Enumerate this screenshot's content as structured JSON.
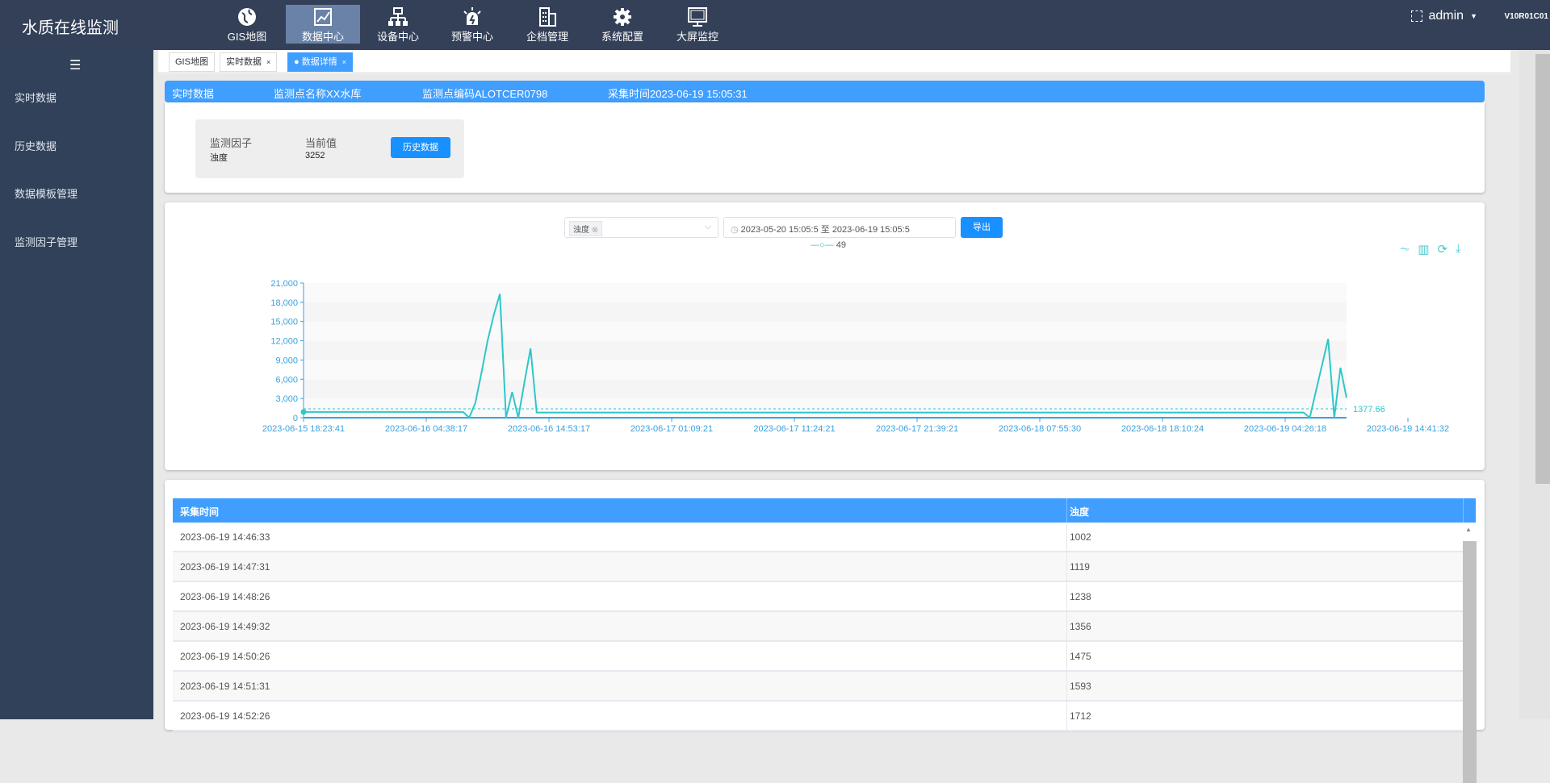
{
  "header": {
    "app_title": "水质在线监测",
    "user": "admin",
    "version": "V10R01C01",
    "nav": [
      {
        "label": "GIS地图",
        "icon": "globe-icon"
      },
      {
        "label": "数据中心",
        "icon": "chart-icon",
        "active": true
      },
      {
        "label": "设备中心",
        "icon": "network-icon"
      },
      {
        "label": "预警中心",
        "icon": "alarm-icon"
      },
      {
        "label": "企档管理",
        "icon": "building-icon"
      },
      {
        "label": "系统配置",
        "icon": "gear-icon"
      },
      {
        "label": "大屏监控",
        "icon": "monitor-icon"
      }
    ]
  },
  "sidebar": {
    "items": [
      "实时数据",
      "历史数据",
      "数据模板管理",
      "监测因子管理"
    ]
  },
  "tabs": [
    {
      "label": "GIS地图"
    },
    {
      "label": "实时数据",
      "closable": true
    },
    {
      "label": "数据详情",
      "closable": true,
      "active": true
    }
  ],
  "banner": {
    "title": "实时数据",
    "site_name": "监测点名称XX水库",
    "site_code": "监测点编码ALOTCER0798",
    "time": "采集时间2023-06-19 15:05:31"
  },
  "factor_card": {
    "factor_label": "监测因子",
    "factor_value": "浊度",
    "current_label": "当前值",
    "current_value": "3252",
    "history_button": "历史数据"
  },
  "filters": {
    "factor_tag": "浊度",
    "start": "2023-05-20 15:05:5",
    "separator": "至",
    "end": "2023-06-19 15:05:5",
    "export_button": "导出"
  },
  "chart_data": {
    "type": "line",
    "legend": "49",
    "legend_position": "top",
    "color": "#2ec7c9",
    "grid": "horizontal-bands",
    "ylim": [
      0,
      21000
    ],
    "y_ticks": [
      "0",
      "3,000",
      "6,000",
      "9,000",
      "12,000",
      "15,000",
      "18,000",
      "21,000"
    ],
    "x_tick_labels": [
      "2023-06-15 18:23:41",
      "2023-06-16 04:38:17",
      "2023-06-16 14:53:17",
      "2023-06-17 01:09:21",
      "2023-06-17 11:24:21",
      "2023-06-17 21:39:21",
      "2023-06-18 07:55:30",
      "2023-06-18 18:10:24",
      "2023-06-19 04:26:18",
      "2023-06-19 14:41:32"
    ],
    "points_per_tick": 20,
    "mark_line": {
      "type": "average",
      "value": 1377.66,
      "label": "1377.66"
    },
    "values": [
      900,
      900,
      900,
      900,
      900,
      900,
      900,
      900,
      900,
      900,
      900,
      900,
      900,
      900,
      900,
      900,
      900,
      900,
      900,
      900,
      900,
      900,
      900,
      900,
      900,
      900,
      900,
      0,
      2300,
      7000,
      12000,
      16000,
      19300,
      0,
      4000,
      0,
      5500,
      10800,
      800,
      800,
      800,
      800,
      800,
      800,
      800,
      800,
      800,
      800,
      800,
      800,
      800,
      800,
      800,
      800,
      800,
      800,
      800,
      800,
      800,
      800,
      800,
      800,
      800,
      800,
      800,
      800,
      800,
      800,
      800,
      800,
      800,
      800,
      800,
      800,
      800,
      800,
      800,
      800,
      800,
      800,
      800,
      800,
      800,
      800,
      800,
      800,
      800,
      800,
      800,
      800,
      800,
      800,
      800,
      800,
      800,
      800,
      800,
      800,
      800,
      800,
      800,
      800,
      800,
      800,
      800,
      800,
      800,
      800,
      800,
      800,
      800,
      800,
      800,
      800,
      800,
      800,
      800,
      800,
      800,
      800,
      800,
      800,
      800,
      800,
      800,
      800,
      800,
      800,
      800,
      800,
      800,
      800,
      800,
      800,
      800,
      800,
      800,
      800,
      800,
      800,
      800,
      800,
      800,
      800,
      800,
      800,
      800,
      800,
      800,
      800,
      800,
      800,
      800,
      800,
      800,
      800,
      800,
      800,
      800,
      800,
      800,
      800,
      800,
      800,
      0,
      4100,
      8200,
      12300,
      0,
      7800,
      3100
    ]
  },
  "toolbox": [
    "line-chart-icon",
    "bar-chart-icon",
    "refresh-icon",
    "download-icon"
  ],
  "table": {
    "columns": [
      "采集时间",
      "浊度"
    ],
    "rows": [
      [
        "2023-06-19 14:46:33",
        "1002"
      ],
      [
        "2023-06-19 14:47:31",
        "1119"
      ],
      [
        "2023-06-19 14:48:26",
        "1238"
      ],
      [
        "2023-06-19 14:49:32",
        "1356"
      ],
      [
        "2023-06-19 14:50:26",
        "1475"
      ],
      [
        "2023-06-19 14:51:31",
        "1593"
      ],
      [
        "2023-06-19 14:52:26",
        "1712"
      ]
    ]
  }
}
